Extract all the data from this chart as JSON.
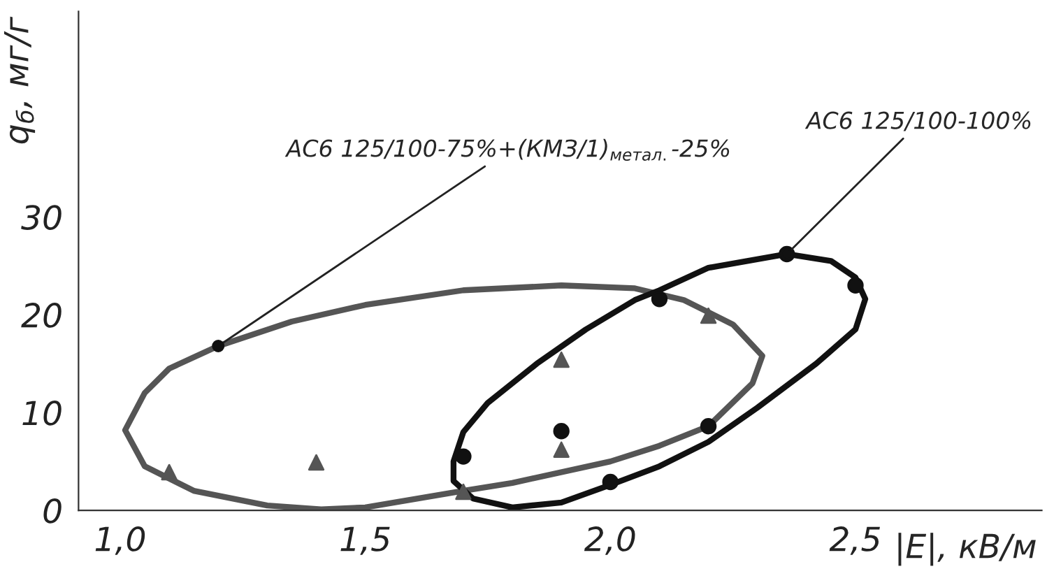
{
  "chart_data": {
    "type": "scatter",
    "xlabel": "|E|, кВ/м",
    "ylabel": "q$_{б}$, мг/г",
    "xlim": [
      0.915,
      2.88
    ],
    "ylim": [
      0,
      51
    ],
    "xticks": [
      {
        "value": 1.0,
        "label": "1,0"
      },
      {
        "value": 1.5,
        "label": "1,5"
      },
      {
        "value": 2.0,
        "label": "2,0"
      },
      {
        "value": 2.5,
        "label": "2,5"
      }
    ],
    "yticks": [
      0,
      10,
      20,
      30
    ],
    "grid": false,
    "legend": false,
    "series": [
      {
        "color": "#111111",
        "marker": "circle",
        "x": [
          1.7,
          1.9,
          2.0,
          2.1,
          2.2,
          2.36,
          2.5
        ],
        "values": [
          5.5,
          8.1,
          2.9,
          21.6,
          8.6,
          26.2,
          23.0
        ]
      },
      {
        "color": "#555555",
        "marker": "triangle",
        "x": [
          1.1,
          1.4,
          1.7,
          1.9,
          1.9,
          2.2
        ],
        "values": [
          3.9,
          4.9,
          1.9,
          15.4,
          6.2,
          19.9
        ]
      }
    ],
    "annotations": [
      {
        "text": "АС6 125/100-75%+(КМЗ/1)$_{метал.}$-25%",
        "x": 1.2,
        "y": 16.8
      },
      {
        "text": "АС6 125/100-100%",
        "x": 2.36,
        "y": 26.2
      }
    ]
  }
}
